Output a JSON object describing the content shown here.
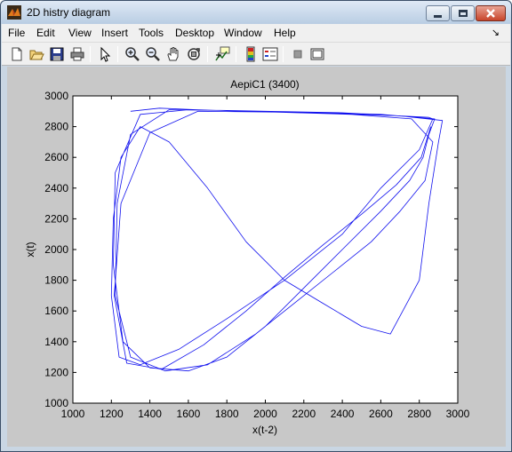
{
  "window": {
    "title": "2D histry diagram"
  },
  "menu": {
    "items": [
      "File",
      "Edit",
      "View",
      "Insert",
      "Tools",
      "Desktop",
      "Window",
      "Help"
    ],
    "dock_arrow": "↘"
  },
  "toolbar": {
    "icons": [
      "new-figure-icon",
      "open-file-icon",
      "save-icon",
      "print-icon",
      "edit-plot-arrow-icon",
      "zoom-in-icon",
      "zoom-out-icon",
      "pan-hand-icon",
      "rotate-3d-icon",
      "data-cursor-icon",
      "colorbar-icon",
      "legend-icon",
      "hide-plot-tools-icon",
      "show-plot-tools-icon"
    ]
  },
  "colors": {
    "series": "#1010ee",
    "axes_bg": "#ffffff",
    "figure_bg": "#c8c8c8",
    "titlebar": "#c9d9ec"
  },
  "chart_data": {
    "type": "line",
    "title": "AepiC1 (3400)",
    "xlabel": "x(t-2)",
    "ylabel": "x(t)",
    "xlim": [
      1000,
      3000
    ],
    "ylim": [
      1000,
      3000
    ],
    "xticks": [
      1000,
      1200,
      1400,
      1600,
      1800,
      2000,
      2200,
      2400,
      2600,
      2800,
      3000
    ],
    "yticks": [
      1000,
      1200,
      1400,
      1600,
      1800,
      2000,
      2200,
      2400,
      2600,
      2800,
      3000
    ],
    "grid": false,
    "series": [
      {
        "x": [
          1300,
          1450,
          1650,
          1900,
          2200,
          2500,
          2700,
          2850,
          2870,
          2800,
          2600,
          2400,
          2100,
          1800,
          1550,
          1350,
          1240,
          1200,
          1210,
          1250,
          1350,
          1500,
          1700,
          1900,
          2100,
          2300,
          2500,
          2650,
          2800,
          2850,
          2900,
          2920,
          2700,
          2400,
          2000,
          1600,
          1350,
          1220,
          1210,
          1260,
          1400,
          1600,
          1800,
          2000,
          2200,
          2400,
          2600,
          2750,
          2820,
          2850,
          2880,
          2600,
          2200,
          1800,
          1500,
          1300,
          1230,
          1220,
          1300,
          1480,
          1700,
          1950,
          2150,
          2350,
          2550,
          2700,
          2830,
          2870,
          2760,
          2450,
          2050,
          1650,
          1400,
          1250,
          1215,
          1280,
          1460,
          1680,
          1900,
          2100,
          2300,
          2500,
          2680,
          2810,
          2860
        ],
        "y": [
          2900,
          2920,
          2910,
          2900,
          2890,
          2880,
          2870,
          2860,
          2850,
          2650,
          2400,
          2100,
          1800,
          1550,
          1350,
          1250,
          1300,
          1700,
          2200,
          2600,
          2800,
          2700,
          2400,
          2050,
          1800,
          1650,
          1500,
          1450,
          1800,
          2300,
          2700,
          2840,
          2870,
          2890,
          2900,
          2910,
          2880,
          2500,
          1900,
          1400,
          1230,
          1210,
          1300,
          1500,
          1750,
          2000,
          2250,
          2450,
          2600,
          2750,
          2850,
          2880,
          2895,
          2905,
          2910,
          2750,
          2300,
          1700,
          1300,
          1210,
          1250,
          1450,
          1650,
          1850,
          2050,
          2250,
          2450,
          2700,
          2850,
          2880,
          2895,
          2900,
          2760,
          2300,
          1700,
          1260,
          1220,
          1380,
          1600,
          1820,
          2030,
          2230,
          2420,
          2600,
          2800
        ]
      }
    ]
  }
}
